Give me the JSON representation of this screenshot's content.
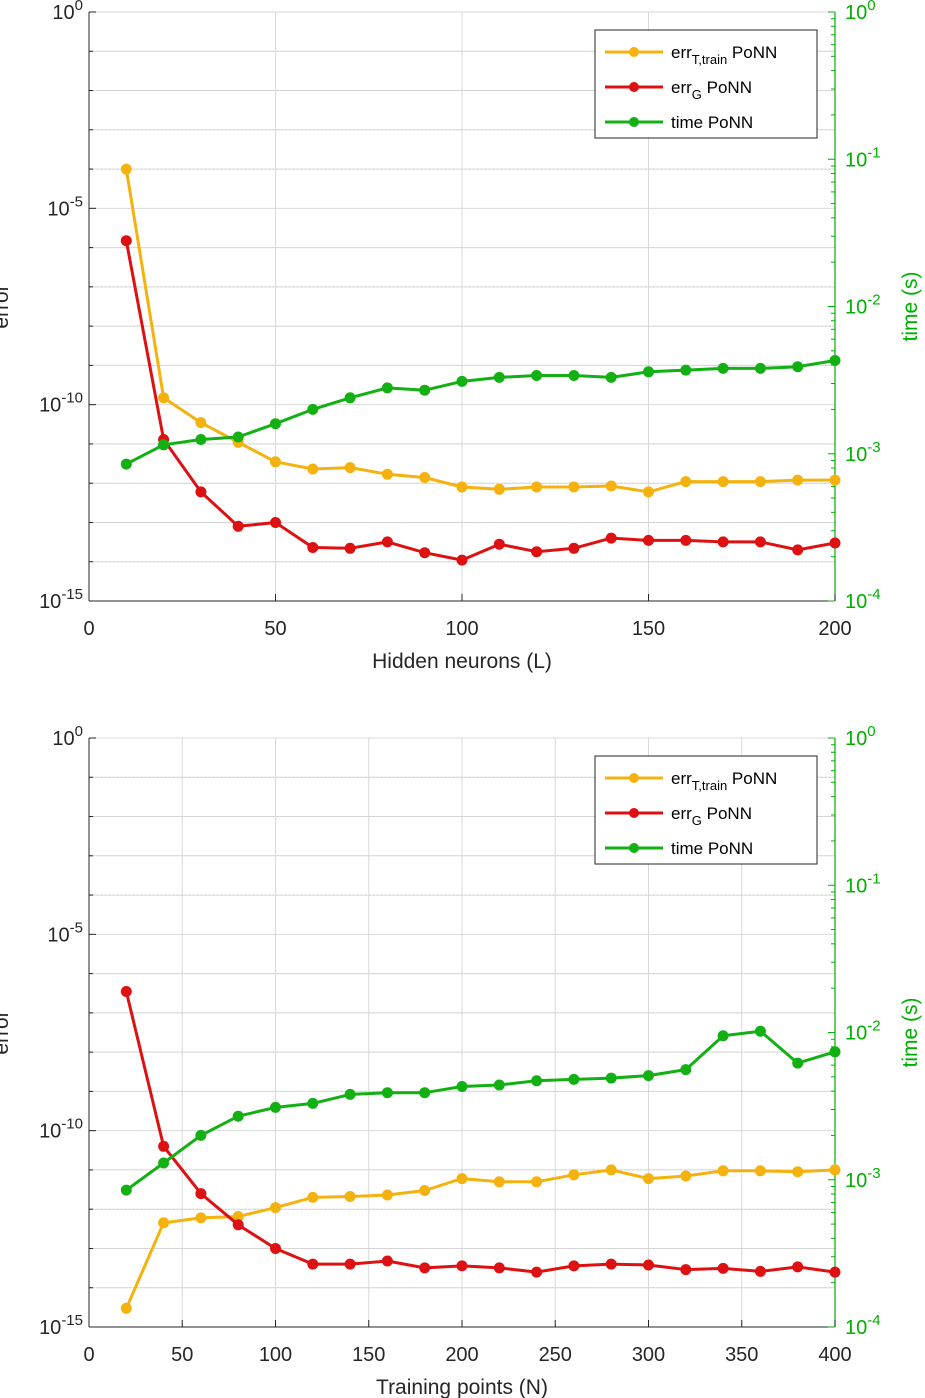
{
  "colors": {
    "err_T": "#f5b20f",
    "err_G": "#dd1111",
    "time": "#13b013",
    "grid": "#d9d9d9",
    "axis": "#262626",
    "right_axis": "#00b000"
  },
  "chart_data": [
    {
      "type": "line",
      "xlabel": "Hidden neurons (L)",
      "ylabel_left": "error",
      "ylabel_right": "time (s)",
      "xlim": [
        0,
        200
      ],
      "xticks": [
        "0",
        "50",
        "100",
        "150",
        "200"
      ],
      "ylim_left": [
        1e-15,
        1
      ],
      "yscale_left": "log",
      "ylim_right": [
        0.0001,
        1
      ],
      "yscale_right": "log",
      "legend_position": "top-right",
      "grid": true,
      "x": [
        10,
        20,
        30,
        40,
        50,
        60,
        70,
        80,
        90,
        100,
        110,
        120,
        130,
        140,
        150,
        160,
        170,
        180,
        190,
        200
      ],
      "series": [
        {
          "name": "err_T,train PoNN",
          "axis": "left",
          "values": [
            0.0001,
            1.5e-10,
            3.5e-11,
            1.1e-11,
            3.5e-12,
            2.3e-12,
            2.5e-12,
            1.7e-12,
            1.4e-12,
            8e-13,
            7e-13,
            8e-13,
            8e-13,
            8.5e-13,
            6e-13,
            1.1e-12,
            1.1e-12,
            1.1e-12,
            1.2e-12,
            1.2e-12
          ]
        },
        {
          "name": "err_G PoNN",
          "axis": "left",
          "values": [
            1.5e-06,
            1.3e-11,
            6e-13,
            8e-14,
            1e-13,
            2.3e-14,
            2.2e-14,
            3.2e-14,
            1.7e-14,
            1.1e-14,
            2.8e-14,
            1.8e-14,
            2.2e-14,
            4e-14,
            3.5e-14,
            3.5e-14,
            3.2e-14,
            3.2e-14,
            2e-14,
            3e-14
          ]
        },
        {
          "name": "time PoNN",
          "axis": "right",
          "values": [
            0.00085,
            0.00115,
            0.00125,
            0.0013,
            0.0016,
            0.002,
            0.0024,
            0.0028,
            0.0027,
            0.0031,
            0.0033,
            0.0034,
            0.0034,
            0.0033,
            0.0036,
            0.0037,
            0.0038,
            0.0038,
            0.0039,
            0.0043
          ]
        }
      ]
    },
    {
      "type": "line",
      "xlabel": "Training points (N)",
      "ylabel_left": "error",
      "ylabel_right": "time (s)",
      "xlim": [
        0,
        400
      ],
      "xticks": [
        "0",
        "50",
        "100",
        "150",
        "200",
        "250",
        "300",
        "350",
        "400"
      ],
      "ylim_left": [
        1e-15,
        1
      ],
      "yscale_left": "log",
      "ylim_right": [
        0.0001,
        1
      ],
      "yscale_right": "log",
      "legend_position": "top-right",
      "grid": true,
      "x": [
        20,
        40,
        60,
        80,
        100,
        120,
        140,
        160,
        180,
        200,
        220,
        240,
        260,
        280,
        300,
        320,
        340,
        360,
        380,
        400
      ],
      "series": [
        {
          "name": "err_T,train PoNN",
          "axis": "left",
          "values": [
            3e-15,
            4.5e-13,
            6e-13,
            6.5e-13,
            1.1e-12,
            2e-12,
            2.1e-12,
            2.3e-12,
            3e-12,
            6e-12,
            5e-12,
            5e-12,
            7.5e-12,
            1e-11,
            6e-12,
            7e-12,
            9.5e-12,
            9.5e-12,
            9e-12,
            1e-11
          ]
        },
        {
          "name": "err_G PoNN",
          "axis": "left",
          "values": [
            3.5e-07,
            4e-11,
            2.5e-12,
            4e-13,
            1e-13,
            4e-14,
            4e-14,
            4.8e-14,
            3.2e-14,
            3.6e-14,
            3.2e-14,
            2.5e-14,
            3.6e-14,
            4e-14,
            3.8e-14,
            2.9e-14,
            3.1e-14,
            2.6e-14,
            3.4e-14,
            2.5e-14
          ]
        },
        {
          "name": "time PoNN",
          "axis": "right",
          "values": [
            0.00085,
            0.0013,
            0.002,
            0.0027,
            0.0031,
            0.0033,
            0.0038,
            0.0039,
            0.0039,
            0.0043,
            0.0044,
            0.0047,
            0.0048,
            0.0049,
            0.0051,
            0.0056,
            0.0095,
            0.0102,
            0.0062,
            0.0074
          ]
        }
      ]
    }
  ]
}
